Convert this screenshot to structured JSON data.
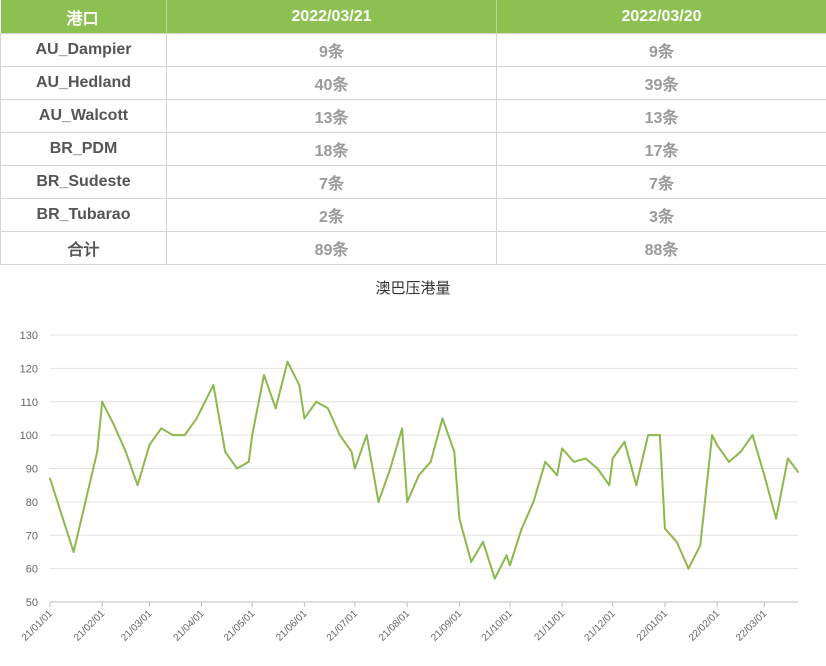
{
  "table": {
    "headers": [
      "港口",
      "2022/03/21",
      "2022/03/20"
    ],
    "rows": [
      {
        "port": "AU_Dampier",
        "v1": "9条",
        "v2": "9条"
      },
      {
        "port": "AU_Hedland",
        "v1": "40条",
        "v2": "39条"
      },
      {
        "port": "AU_Walcott",
        "v1": "13条",
        "v2": "13条"
      },
      {
        "port": "BR_PDM",
        "v1": "18条",
        "v2": "17条"
      },
      {
        "port": "BR_Sudeste",
        "v1": "7条",
        "v2": "7条"
      },
      {
        "port": "BR_Tubarao",
        "v1": "2条",
        "v2": "3条"
      },
      {
        "port": "合计",
        "v1": "89条",
        "v2": "88条"
      }
    ]
  },
  "colors": {
    "header_bg": "#8cc152",
    "line": "#8cb84e",
    "grid": "#e3e3e3"
  },
  "chart_data": {
    "type": "line",
    "title": "澳巴压港量",
    "ylim": [
      50,
      130
    ],
    "yticks": [
      50,
      60,
      70,
      80,
      90,
      100,
      110,
      120,
      130
    ],
    "xticks": [
      "21/01/01",
      "21/02/01",
      "21/03/01",
      "21/04/01",
      "21/05/01",
      "21/06/01",
      "21/07/01",
      "21/08/01",
      "21/09/01",
      "21/10/01",
      "21/11/01",
      "21/12/01",
      "22/01/01",
      "22/02/01",
      "22/03/01"
    ],
    "grid": true,
    "x": [
      "21/01/01",
      "21/01/08",
      "21/01/15",
      "21/01/22",
      "21/01/29",
      "21/02/01",
      "21/02/08",
      "21/02/15",
      "21/02/22",
      "21/03/01",
      "21/03/08",
      "21/03/15",
      "21/03/22",
      "21/03/29",
      "21/04/01",
      "21/04/08",
      "21/04/15",
      "21/04/22",
      "21/04/29",
      "21/05/01",
      "21/05/08",
      "21/05/15",
      "21/05/22",
      "21/05/29",
      "21/06/01",
      "21/06/08",
      "21/06/15",
      "21/06/22",
      "21/06/29",
      "21/07/01",
      "21/07/08",
      "21/07/15",
      "21/07/22",
      "21/07/29",
      "21/08/01",
      "21/08/08",
      "21/08/15",
      "21/08/22",
      "21/08/29",
      "21/09/01",
      "21/09/08",
      "21/09/15",
      "21/09/22",
      "21/09/29",
      "21/10/01",
      "21/10/08",
      "21/10/15",
      "21/10/22",
      "21/10/29",
      "21/11/01",
      "21/11/08",
      "21/11/15",
      "21/11/22",
      "21/11/29",
      "21/12/01",
      "21/12/08",
      "21/12/15",
      "21/12/22",
      "21/12/29",
      "22/01/01",
      "22/01/08",
      "22/01/15",
      "22/01/22",
      "22/01/29",
      "22/02/01",
      "22/02/08",
      "22/02/15",
      "22/02/22",
      "22/03/01",
      "22/03/08",
      "22/03/15",
      "22/03/21"
    ],
    "series": [
      {
        "values": [
          87,
          76,
          65,
          80,
          95,
          110,
          103,
          95,
          85,
          97,
          102,
          100,
          100,
          105,
          108,
          115,
          95,
          90,
          92,
          100,
          118,
          108,
          122,
          115,
          105,
          110,
          108,
          100,
          95,
          90,
          100,
          80,
          90,
          102,
          80,
          88,
          92,
          105,
          95,
          75,
          62,
          68,
          57,
          64,
          61,
          72,
          80,
          92,
          88,
          96,
          92,
          93,
          90,
          85,
          93,
          98,
          85,
          100,
          100,
          72,
          68,
          60,
          67,
          100,
          97,
          92,
          95,
          100,
          88,
          75,
          93,
          89
        ]
      }
    ]
  }
}
